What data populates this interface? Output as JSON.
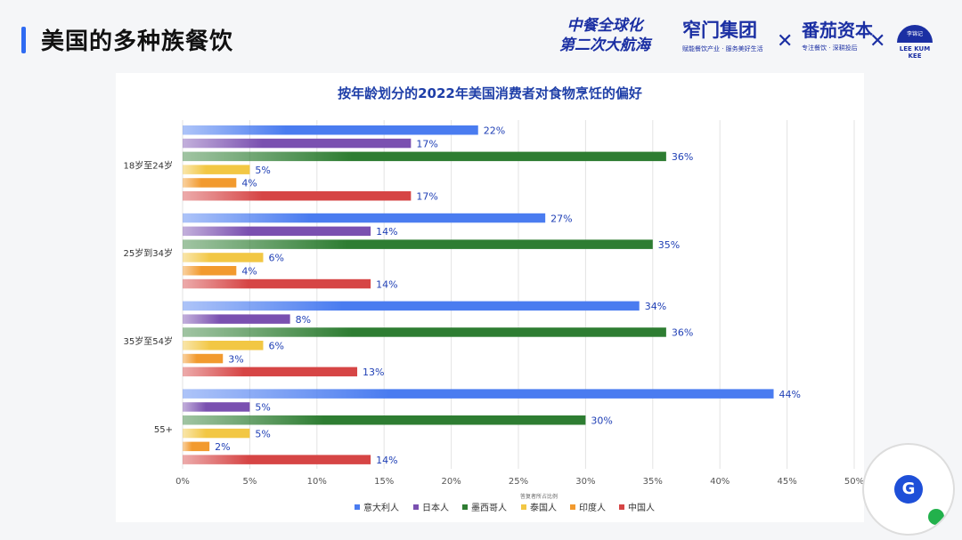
{
  "page": {
    "title": "美国的多种族餐饮"
  },
  "branding": {
    "campaign_line1": "中餐全球化",
    "campaign_line2": "第二次大航海",
    "group_name": "窄门集团",
    "group_tagline": "赋能餐饮产业 · 服务美好生活",
    "fanqie_name": "番茄资本",
    "fanqie_tagline": "专注餐饮 · 深耕投后",
    "lkk_badge": "李锦记",
    "lkk_name": "LEE KUM KEE"
  },
  "colors": {
    "accent": "#2f6bf2",
    "brand": "#1b2fa3",
    "value_label": "#1f3fb5"
  },
  "chart_data": {
    "type": "bar",
    "orientation": "horizontal",
    "title": "按年龄划分的2022年美国消费者对食物烹饪的偏好",
    "xlabel": "答复者所占比例",
    "ylabel": "",
    "categories": [
      "18岁至24岁",
      "25岁到34岁",
      "35岁至54岁",
      "55+"
    ],
    "series": [
      {
        "name": "意大利人",
        "color": "#4a7cf0",
        "values": [
          22,
          27,
          34,
          44
        ]
      },
      {
        "name": "日本人",
        "color": "#7a50b0",
        "values": [
          17,
          14,
          8,
          5
        ]
      },
      {
        "name": "墨西哥人",
        "color": "#2e7d32",
        "values": [
          36,
          35,
          36,
          30
        ]
      },
      {
        "name": "泰国人",
        "color": "#f2c744",
        "values": [
          5,
          6,
          6,
          5
        ]
      },
      {
        "name": "印度人",
        "color": "#f29a2e",
        "values": [
          4,
          4,
          3,
          2
        ]
      },
      {
        "name": "中国人",
        "color": "#d64545",
        "values": [
          17,
          14,
          13,
          14
        ]
      }
    ],
    "value_suffix": "%",
    "xlim": [
      0,
      50
    ],
    "xticks": [
      "0%",
      "5%",
      "10%",
      "15%",
      "20%",
      "25%",
      "30%",
      "35%",
      "40%",
      "45%",
      "50%"
    ],
    "grid": true,
    "legend_position": "bottom"
  }
}
